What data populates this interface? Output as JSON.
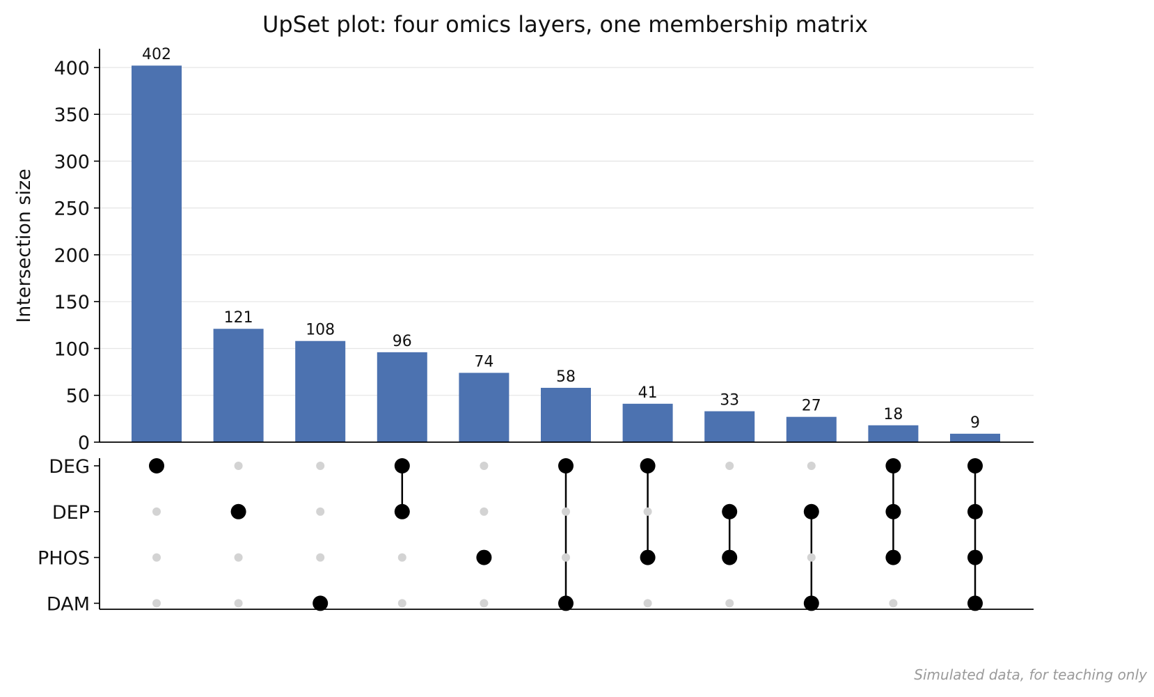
{
  "chart_data": {
    "type": "bar",
    "title": "UpSet plot: four omics layers, one membership matrix",
    "ylabel": "Intersection size",
    "ylim": [
      0,
      420
    ],
    "yticks": [
      0,
      50,
      100,
      150,
      200,
      250,
      300,
      350,
      400
    ],
    "ytick_labels": [
      "0",
      "50",
      "100",
      "150",
      "200",
      "250",
      "300",
      "350",
      "400"
    ],
    "grid": "horizontal",
    "bar_color": "#4C72B0",
    "sets": [
      "DEG",
      "DEP",
      "PHOS",
      "DAM"
    ],
    "intersections": [
      {
        "members": [
          "DEG"
        ],
        "size": 402,
        "label": "402"
      },
      {
        "members": [
          "DEP"
        ],
        "size": 121,
        "label": "121"
      },
      {
        "members": [
          "DAM"
        ],
        "size": 108,
        "label": "108"
      },
      {
        "members": [
          "DEG",
          "DEP"
        ],
        "size": 96,
        "label": "96"
      },
      {
        "members": [
          "PHOS"
        ],
        "size": 74,
        "label": "74"
      },
      {
        "members": [
          "DEG",
          "DAM"
        ],
        "size": 58,
        "label": "58"
      },
      {
        "members": [
          "DEG",
          "PHOS"
        ],
        "size": 41,
        "label": "41"
      },
      {
        "members": [
          "DEP",
          "PHOS"
        ],
        "size": 33,
        "label": "33"
      },
      {
        "members": [
          "DEP",
          "DAM"
        ],
        "size": 27,
        "label": "27"
      },
      {
        "members": [
          "DEG",
          "DEP",
          "PHOS"
        ],
        "size": 18,
        "label": "18"
      },
      {
        "members": [
          "DEG",
          "DEP",
          "PHOS",
          "DAM"
        ],
        "size": 9,
        "label": "9"
      }
    ],
    "dot_active_color": "#000000",
    "dot_inactive_color": "#d3d3d3"
  },
  "footnote": "Simulated data, for teaching only"
}
